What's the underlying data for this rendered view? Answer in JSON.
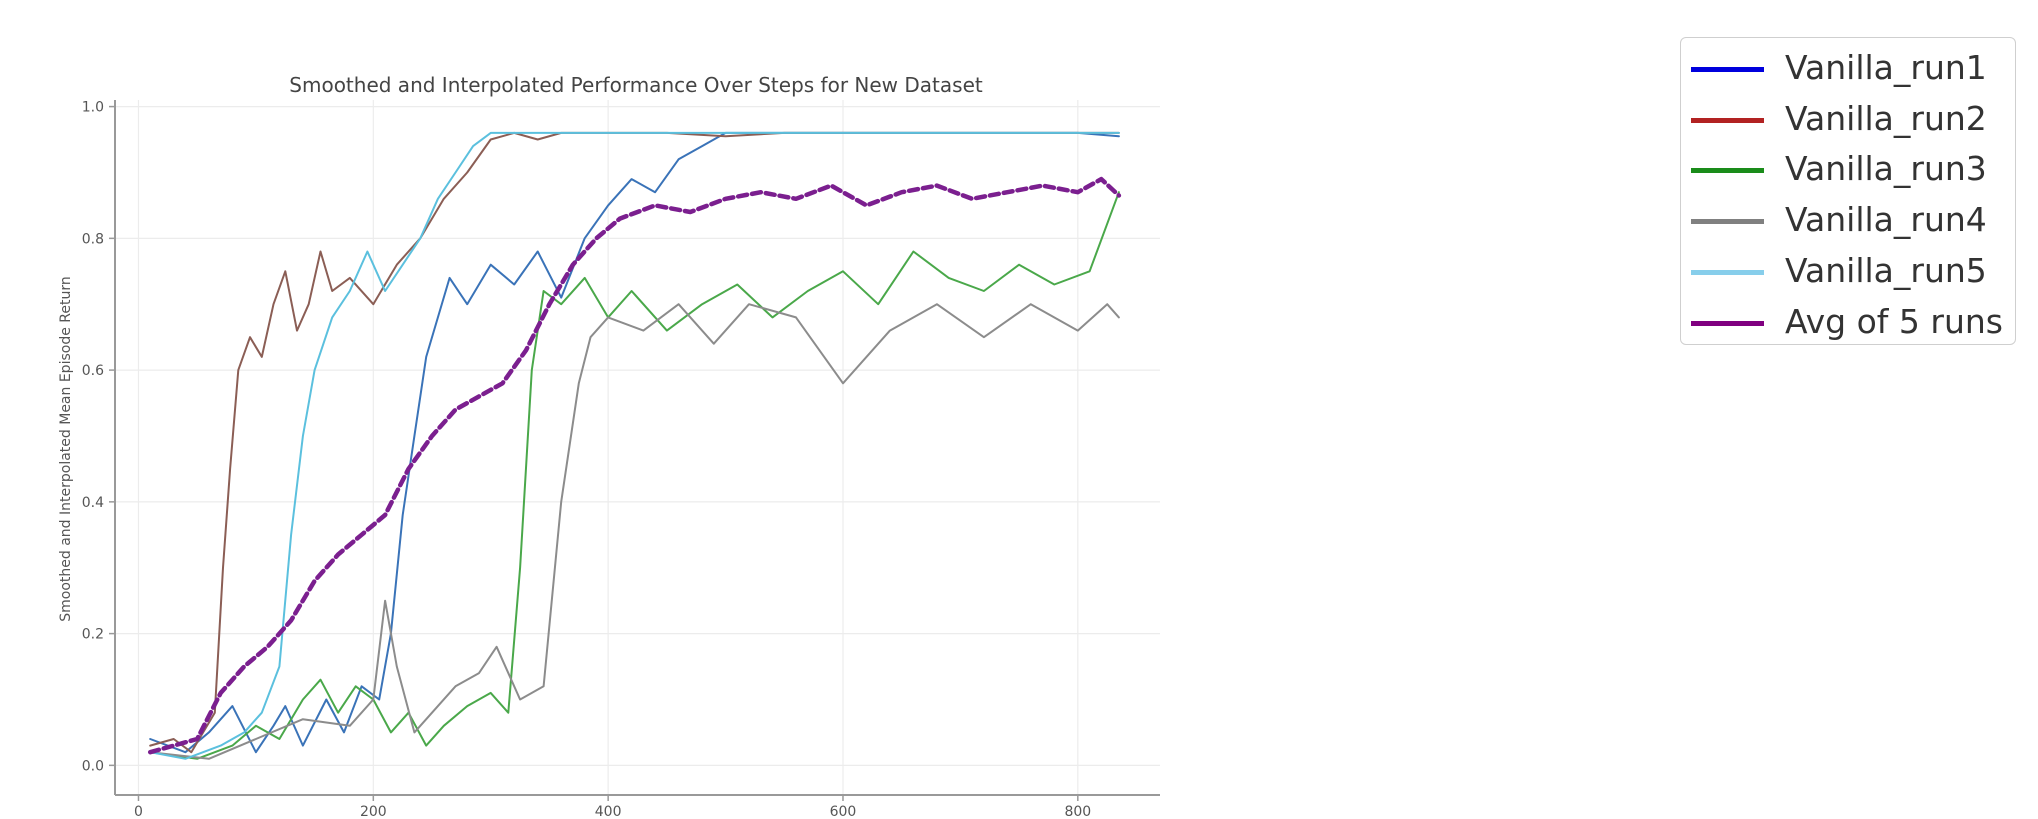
{
  "chart_data": {
    "type": "line",
    "title": "Smoothed and Interpolated Performance Over Steps for New Dataset",
    "xlabel": "",
    "ylabel": "Smoothed and Interpolated Mean Episode Return",
    "xlim": [
      -20,
      870
    ],
    "ylim": [
      -0.045,
      1.01
    ],
    "xticks": [
      0,
      200,
      400,
      600,
      800
    ],
    "yticks": [
      0.0,
      0.2,
      0.4,
      0.6,
      0.8,
      1.0
    ],
    "ytick_labels": [
      "0.0",
      "0.2",
      "0.4",
      "0.6",
      "0.8",
      "1.0"
    ],
    "grid": true,
    "legend_position": "outside-top-right",
    "series": [
      {
        "name": "Vanilla_run1",
        "color": "#3a73b8",
        "legend_color": "#0000dd",
        "style": "solid",
        "points": [
          [
            10,
            0.04
          ],
          [
            40,
            0.02
          ],
          [
            60,
            0.05
          ],
          [
            80,
            0.09
          ],
          [
            100,
            0.02
          ],
          [
            115,
            0.06
          ],
          [
            125,
            0.09
          ],
          [
            140,
            0.03
          ],
          [
            160,
            0.1
          ],
          [
            175,
            0.05
          ],
          [
            190,
            0.12
          ],
          [
            205,
            0.1
          ],
          [
            215,
            0.2
          ],
          [
            225,
            0.38
          ],
          [
            235,
            0.5
          ],
          [
            245,
            0.62
          ],
          [
            255,
            0.68
          ],
          [
            265,
            0.74
          ],
          [
            280,
            0.7
          ],
          [
            300,
            0.76
          ],
          [
            320,
            0.73
          ],
          [
            340,
            0.78
          ],
          [
            360,
            0.71
          ],
          [
            380,
            0.8
          ],
          [
            400,
            0.85
          ],
          [
            420,
            0.89
          ],
          [
            440,
            0.87
          ],
          [
            460,
            0.92
          ],
          [
            480,
            0.94
          ],
          [
            500,
            0.96
          ],
          [
            520,
            0.96
          ],
          [
            600,
            0.96
          ],
          [
            700,
            0.96
          ],
          [
            800,
            0.96
          ],
          [
            835,
            0.955
          ]
        ]
      },
      {
        "name": "Vanilla_run2",
        "color": "#8b5e55",
        "legend_color": "#b22222",
        "style": "solid",
        "points": [
          [
            10,
            0.03
          ],
          [
            30,
            0.04
          ],
          [
            45,
            0.02
          ],
          [
            55,
            0.05
          ],
          [
            65,
            0.08
          ],
          [
            72,
            0.3
          ],
          [
            78,
            0.45
          ],
          [
            85,
            0.6
          ],
          [
            95,
            0.65
          ],
          [
            105,
            0.62
          ],
          [
            115,
            0.7
          ],
          [
            125,
            0.75
          ],
          [
            135,
            0.66
          ],
          [
            145,
            0.7
          ],
          [
            155,
            0.78
          ],
          [
            165,
            0.72
          ],
          [
            180,
            0.74
          ],
          [
            200,
            0.7
          ],
          [
            220,
            0.76
          ],
          [
            240,
            0.8
          ],
          [
            260,
            0.86
          ],
          [
            280,
            0.9
          ],
          [
            300,
            0.95
          ],
          [
            320,
            0.96
          ],
          [
            340,
            0.95
          ],
          [
            360,
            0.96
          ],
          [
            400,
            0.96
          ],
          [
            450,
            0.96
          ],
          [
            500,
            0.955
          ],
          [
            550,
            0.96
          ],
          [
            600,
            0.96
          ],
          [
            700,
            0.96
          ],
          [
            800,
            0.96
          ],
          [
            835,
            0.96
          ]
        ]
      },
      {
        "name": "Vanilla_run3",
        "color": "#4aa84a",
        "legend_color": "#1a8c1a",
        "style": "solid",
        "points": [
          [
            10,
            0.02
          ],
          [
            50,
            0.01
          ],
          [
            80,
            0.03
          ],
          [
            100,
            0.06
          ],
          [
            120,
            0.04
          ],
          [
            140,
            0.1
          ],
          [
            155,
            0.13
          ],
          [
            170,
            0.08
          ],
          [
            185,
            0.12
          ],
          [
            200,
            0.1
          ],
          [
            215,
            0.05
          ],
          [
            230,
            0.08
          ],
          [
            245,
            0.03
          ],
          [
            260,
            0.06
          ],
          [
            280,
            0.09
          ],
          [
            300,
            0.11
          ],
          [
            315,
            0.08
          ],
          [
            325,
            0.3
          ],
          [
            335,
            0.6
          ],
          [
            345,
            0.72
          ],
          [
            360,
            0.7
          ],
          [
            380,
            0.74
          ],
          [
            400,
            0.68
          ],
          [
            420,
            0.72
          ],
          [
            450,
            0.66
          ],
          [
            480,
            0.7
          ],
          [
            510,
            0.73
          ],
          [
            540,
            0.68
          ],
          [
            570,
            0.72
          ],
          [
            600,
            0.75
          ],
          [
            630,
            0.7
          ],
          [
            660,
            0.78
          ],
          [
            690,
            0.74
          ],
          [
            720,
            0.72
          ],
          [
            750,
            0.76
          ],
          [
            780,
            0.73
          ],
          [
            810,
            0.75
          ],
          [
            835,
            0.87
          ]
        ]
      },
      {
        "name": "Vanilla_run4",
        "color": "#8c8c8c",
        "legend_color": "#808080",
        "style": "solid",
        "points": [
          [
            10,
            0.02
          ],
          [
            60,
            0.01
          ],
          [
            100,
            0.04
          ],
          [
            140,
            0.07
          ],
          [
            180,
            0.06
          ],
          [
            200,
            0.1
          ],
          [
            210,
            0.25
          ],
          [
            220,
            0.15
          ],
          [
            235,
            0.05
          ],
          [
            250,
            0.08
          ],
          [
            270,
            0.12
          ],
          [
            290,
            0.14
          ],
          [
            305,
            0.18
          ],
          [
            325,
            0.1
          ],
          [
            345,
            0.12
          ],
          [
            360,
            0.4
          ],
          [
            375,
            0.58
          ],
          [
            385,
            0.65
          ],
          [
            400,
            0.68
          ],
          [
            430,
            0.66
          ],
          [
            460,
            0.7
          ],
          [
            490,
            0.64
          ],
          [
            520,
            0.7
          ],
          [
            560,
            0.68
          ],
          [
            600,
            0.58
          ],
          [
            640,
            0.66
          ],
          [
            680,
            0.7
          ],
          [
            720,
            0.65
          ],
          [
            760,
            0.7
          ],
          [
            800,
            0.66
          ],
          [
            825,
            0.7
          ],
          [
            835,
            0.68
          ]
        ]
      },
      {
        "name": "Vanilla_run5",
        "color": "#5bc0de",
        "legend_color": "#87ceeb",
        "style": "solid",
        "points": [
          [
            10,
            0.02
          ],
          [
            40,
            0.01
          ],
          [
            70,
            0.03
          ],
          [
            90,
            0.05
          ],
          [
            105,
            0.08
          ],
          [
            120,
            0.15
          ],
          [
            130,
            0.35
          ],
          [
            140,
            0.5
          ],
          [
            150,
            0.6
          ],
          [
            165,
            0.68
          ],
          [
            180,
            0.72
          ],
          [
            195,
            0.78
          ],
          [
            210,
            0.72
          ],
          [
            225,
            0.76
          ],
          [
            240,
            0.8
          ],
          [
            255,
            0.86
          ],
          [
            270,
            0.9
          ],
          [
            285,
            0.94
          ],
          [
            300,
            0.96
          ],
          [
            330,
            0.96
          ],
          [
            400,
            0.96
          ],
          [
            450,
            0.96
          ],
          [
            500,
            0.96
          ],
          [
            600,
            0.96
          ],
          [
            700,
            0.96
          ],
          [
            800,
            0.96
          ],
          [
            835,
            0.96
          ]
        ]
      },
      {
        "name": "Avg of 5 runs",
        "color": "#7b1f8f",
        "legend_color": "#800080",
        "style": "dashed",
        "points": [
          [
            10,
            0.02
          ],
          [
            50,
            0.04
          ],
          [
            70,
            0.11
          ],
          [
            90,
            0.15
          ],
          [
            110,
            0.18
          ],
          [
            130,
            0.22
          ],
          [
            150,
            0.28
          ],
          [
            170,
            0.32
          ],
          [
            190,
            0.35
          ],
          [
            210,
            0.38
          ],
          [
            230,
            0.45
          ],
          [
            250,
            0.5
          ],
          [
            270,
            0.54
          ],
          [
            290,
            0.56
          ],
          [
            310,
            0.58
          ],
          [
            330,
            0.63
          ],
          [
            350,
            0.7
          ],
          [
            370,
            0.76
          ],
          [
            390,
            0.8
          ],
          [
            410,
            0.83
          ],
          [
            440,
            0.85
          ],
          [
            470,
            0.84
          ],
          [
            500,
            0.86
          ],
          [
            530,
            0.87
          ],
          [
            560,
            0.86
          ],
          [
            590,
            0.88
          ],
          [
            620,
            0.85
          ],
          [
            650,
            0.87
          ],
          [
            680,
            0.88
          ],
          [
            710,
            0.86
          ],
          [
            740,
            0.87
          ],
          [
            770,
            0.88
          ],
          [
            800,
            0.87
          ],
          [
            820,
            0.89
          ],
          [
            835,
            0.865
          ]
        ]
      }
    ]
  }
}
